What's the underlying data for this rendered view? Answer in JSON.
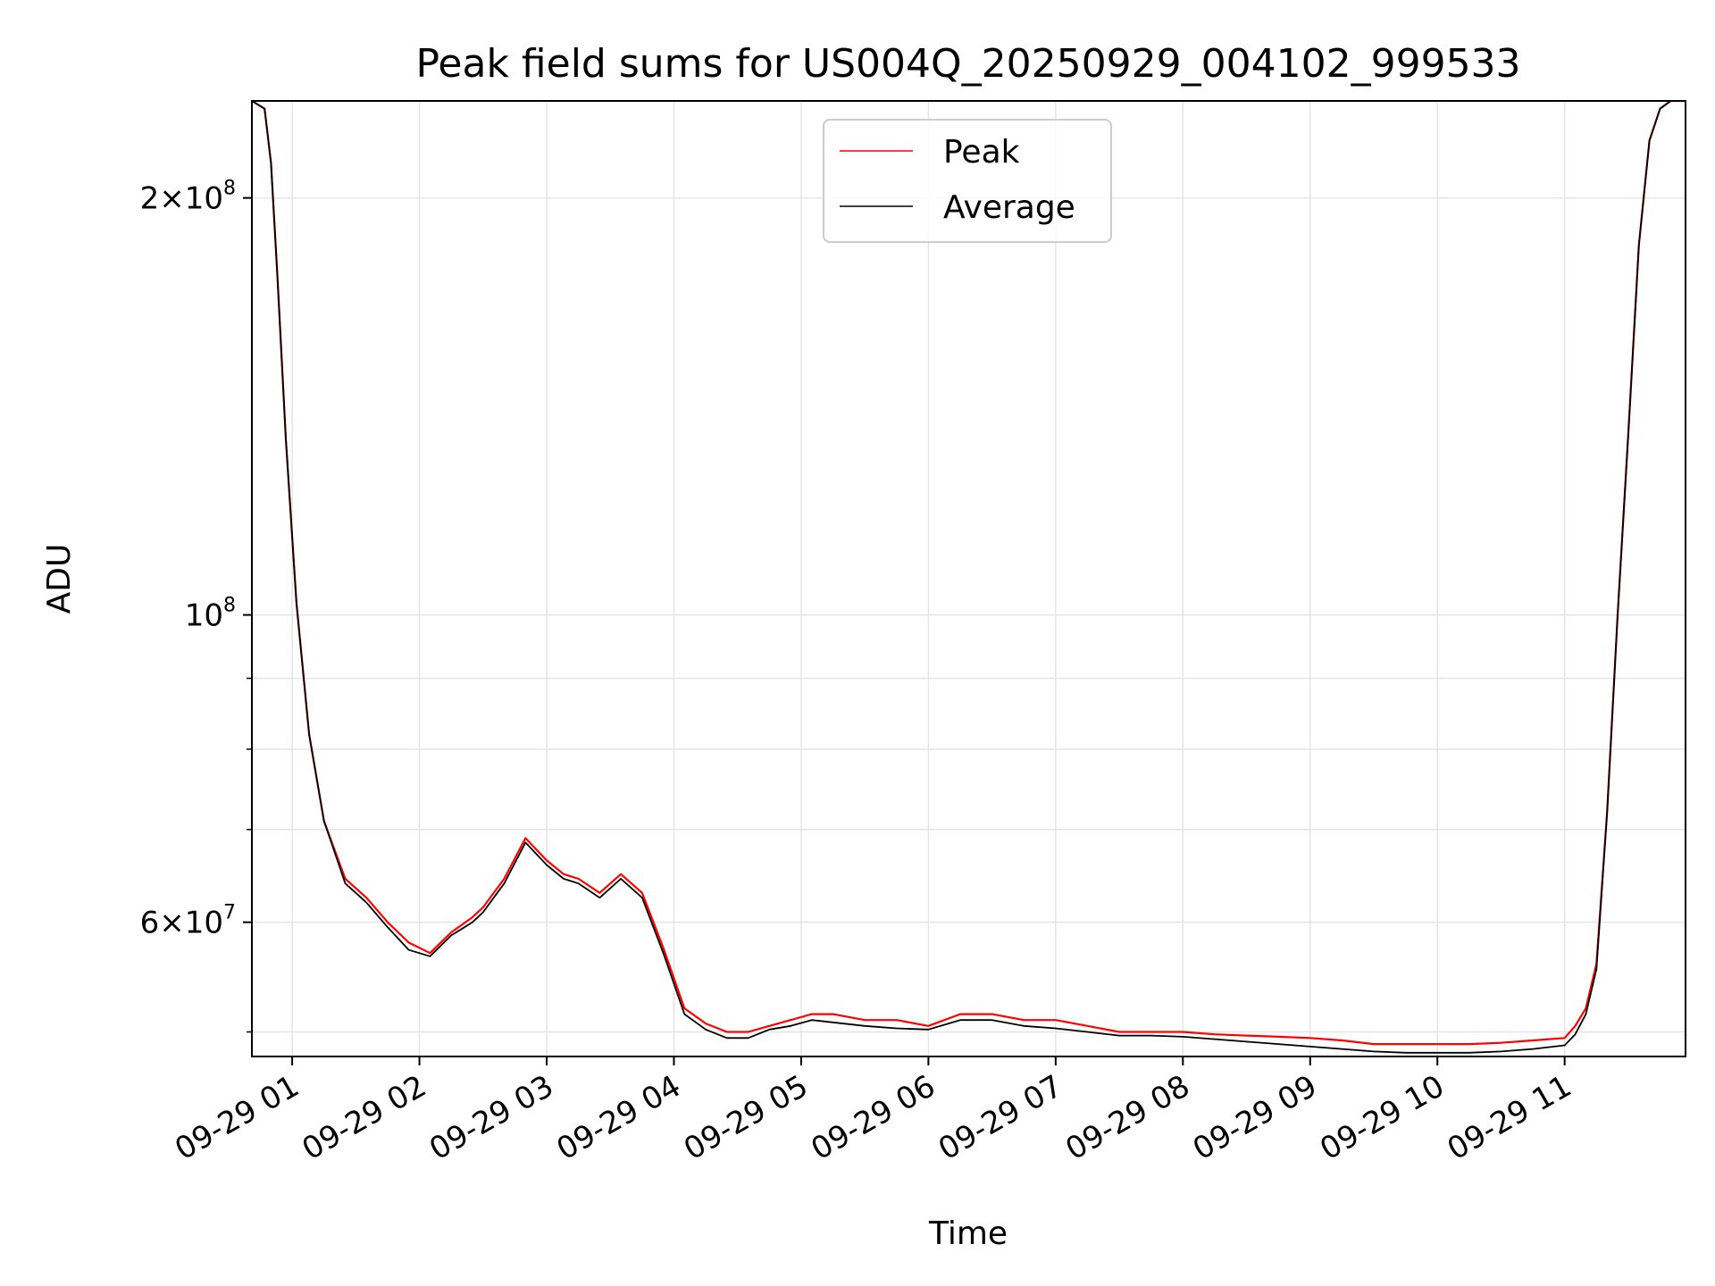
{
  "chart_data": {
    "type": "line",
    "title": "Peak field sums for US004Q_20250929_004102_999533",
    "xlabel": "Time",
    "ylabel": "ADU",
    "y_scale": "log",
    "ylim": [
      48000000,
      235000000
    ],
    "xlim": [
      "2025-09-29 00:41",
      "2025-09-29 11:57"
    ],
    "grid": true,
    "legend_position": "top-center",
    "x_ticks": [
      "2025-09-29 01:00",
      "2025-09-29 02:00",
      "2025-09-29 03:00",
      "2025-09-29 04:00",
      "2025-09-29 05:00",
      "2025-09-29 06:00",
      "2025-09-29 07:00",
      "2025-09-29 08:00",
      "2025-09-29 09:00",
      "2025-09-29 10:00",
      "2025-09-29 11:00"
    ],
    "x_tick_labels": [
      "09-29 01",
      "09-29 02",
      "09-29 03",
      "09-29 04",
      "09-29 05",
      "09-29 06",
      "09-29 07",
      "09-29 08",
      "09-29 09",
      "09-29 10",
      "09-29 11"
    ],
    "y_ticks_major": [
      {
        "value": 60000000,
        "mantissa": "6",
        "exponent": "7"
      },
      {
        "value": 100000000,
        "mantissa": "",
        "exponent": "8"
      },
      {
        "value": 200000000,
        "mantissa": "2",
        "exponent": "8"
      }
    ],
    "y_ticks_minor": [
      50000000,
      70000000,
      80000000,
      90000000
    ],
    "series": [
      {
        "name": "Peak",
        "color": "#ff0000",
        "x": [
          "2025-09-29 00:41",
          "2025-09-29 00:47",
          "2025-09-29 00:50",
          "2025-09-29 00:53",
          "2025-09-29 00:57",
          "2025-09-29 01:02",
          "2025-09-29 01:08",
          "2025-09-29 01:15",
          "2025-09-29 01:25",
          "2025-09-29 01:35",
          "2025-09-29 01:45",
          "2025-09-29 01:55",
          "2025-09-29 02:05",
          "2025-09-29 02:15",
          "2025-09-29 02:25",
          "2025-09-29 02:30",
          "2025-09-29 02:40",
          "2025-09-29 02:50",
          "2025-09-29 03:00",
          "2025-09-29 03:08",
          "2025-09-29 03:15",
          "2025-09-29 03:25",
          "2025-09-29 03:35",
          "2025-09-29 03:45",
          "2025-09-29 03:55",
          "2025-09-29 04:05",
          "2025-09-29 04:15",
          "2025-09-29 04:25",
          "2025-09-29 04:35",
          "2025-09-29 04:45",
          "2025-09-29 04:55",
          "2025-09-29 05:05",
          "2025-09-29 05:15",
          "2025-09-29 05:30",
          "2025-09-29 05:45",
          "2025-09-29 06:00",
          "2025-09-29 06:15",
          "2025-09-29 06:30",
          "2025-09-29 06:45",
          "2025-09-29 07:00",
          "2025-09-29 07:15",
          "2025-09-29 07:30",
          "2025-09-29 07:45",
          "2025-09-29 08:00",
          "2025-09-29 08:15",
          "2025-09-29 08:30",
          "2025-09-29 08:45",
          "2025-09-29 09:00",
          "2025-09-29 09:15",
          "2025-09-29 09:30",
          "2025-09-29 09:45",
          "2025-09-29 10:00",
          "2025-09-29 10:15",
          "2025-09-29 10:30",
          "2025-09-29 10:45",
          "2025-09-29 11:00",
          "2025-09-29 11:05",
          "2025-09-29 11:10",
          "2025-09-29 11:15",
          "2025-09-29 11:20",
          "2025-09-29 11:25",
          "2025-09-29 11:30",
          "2025-09-29 11:35",
          "2025-09-29 11:40",
          "2025-09-29 11:45",
          "2025-09-29 11:50",
          "2025-09-29 11:57"
        ],
        "values": [
          235000000,
          232000000,
          212000000,
          176000000,
          134000000,
          102000000,
          82000000,
          71000000,
          64500000,
          62500000,
          60000000,
          58000000,
          57000000,
          59000000,
          60500000,
          61500000,
          64500000,
          69000000,
          66500000,
          65000000,
          64500000,
          63000000,
          65000000,
          63000000,
          57500000,
          52000000,
          50700000,
          50000000,
          50000000,
          50500000,
          51000000,
          51500000,
          51500000,
          51000000,
          51000000,
          50500000,
          51500000,
          51500000,
          51000000,
          51000000,
          50500000,
          50000000,
          50000000,
          50000000,
          49800000,
          49700000,
          49600000,
          49500000,
          49300000,
          49000000,
          49000000,
          49000000,
          49000000,
          49100000,
          49300000,
          49500000,
          50500000,
          52000000,
          56000000,
          72000000,
          100000000,
          135000000,
          185000000,
          220000000,
          232000000,
          235000000,
          235000000
        ]
      },
      {
        "name": "Average",
        "color": "#000000",
        "x": [
          "2025-09-29 00:41",
          "2025-09-29 00:47",
          "2025-09-29 00:50",
          "2025-09-29 00:53",
          "2025-09-29 00:57",
          "2025-09-29 01:02",
          "2025-09-29 01:08",
          "2025-09-29 01:15",
          "2025-09-29 01:25",
          "2025-09-29 01:35",
          "2025-09-29 01:45",
          "2025-09-29 01:55",
          "2025-09-29 02:05",
          "2025-09-29 02:15",
          "2025-09-29 02:25",
          "2025-09-29 02:30",
          "2025-09-29 02:40",
          "2025-09-29 02:50",
          "2025-09-29 03:00",
          "2025-09-29 03:08",
          "2025-09-29 03:15",
          "2025-09-29 03:25",
          "2025-09-29 03:35",
          "2025-09-29 03:45",
          "2025-09-29 03:55",
          "2025-09-29 04:05",
          "2025-09-29 04:15",
          "2025-09-29 04:25",
          "2025-09-29 04:35",
          "2025-09-29 04:45",
          "2025-09-29 04:55",
          "2025-09-29 05:05",
          "2025-09-29 05:15",
          "2025-09-29 05:30",
          "2025-09-29 05:45",
          "2025-09-29 06:00",
          "2025-09-29 06:15",
          "2025-09-29 06:30",
          "2025-09-29 06:45",
          "2025-09-29 07:00",
          "2025-09-29 07:15",
          "2025-09-29 07:30",
          "2025-09-29 07:45",
          "2025-09-29 08:00",
          "2025-09-29 08:15",
          "2025-09-29 08:30",
          "2025-09-29 08:45",
          "2025-09-29 09:00",
          "2025-09-29 09:15",
          "2025-09-29 09:30",
          "2025-09-29 09:45",
          "2025-09-29 10:00",
          "2025-09-29 10:15",
          "2025-09-29 10:30",
          "2025-09-29 10:45",
          "2025-09-29 11:00",
          "2025-09-29 11:05",
          "2025-09-29 11:10",
          "2025-09-29 11:15",
          "2025-09-29 11:20",
          "2025-09-29 11:25",
          "2025-09-29 11:30",
          "2025-09-29 11:35",
          "2025-09-29 11:40",
          "2025-09-29 11:45",
          "2025-09-29 11:50",
          "2025-09-29 11:57"
        ],
        "values": [
          235000000,
          232000000,
          212000000,
          176000000,
          134000000,
          102000000,
          82000000,
          71000000,
          64000000,
          62000000,
          59500000,
          57300000,
          56700000,
          58700000,
          60000000,
          61000000,
          64000000,
          68500000,
          66000000,
          64500000,
          64000000,
          62500000,
          64500000,
          62500000,
          57000000,
          51500000,
          50200000,
          49500000,
          49500000,
          50200000,
          50500000,
          51000000,
          50800000,
          50500000,
          50300000,
          50200000,
          51000000,
          51000000,
          50500000,
          50300000,
          50000000,
          49700000,
          49700000,
          49600000,
          49400000,
          49200000,
          49000000,
          48800000,
          48600000,
          48400000,
          48300000,
          48300000,
          48300000,
          48400000,
          48600000,
          48900000,
          49800000,
          51500000,
          55500000,
          72000000,
          100000000,
          135000000,
          185000000,
          220000000,
          232000000,
          235000000,
          235000000
        ]
      }
    ]
  }
}
